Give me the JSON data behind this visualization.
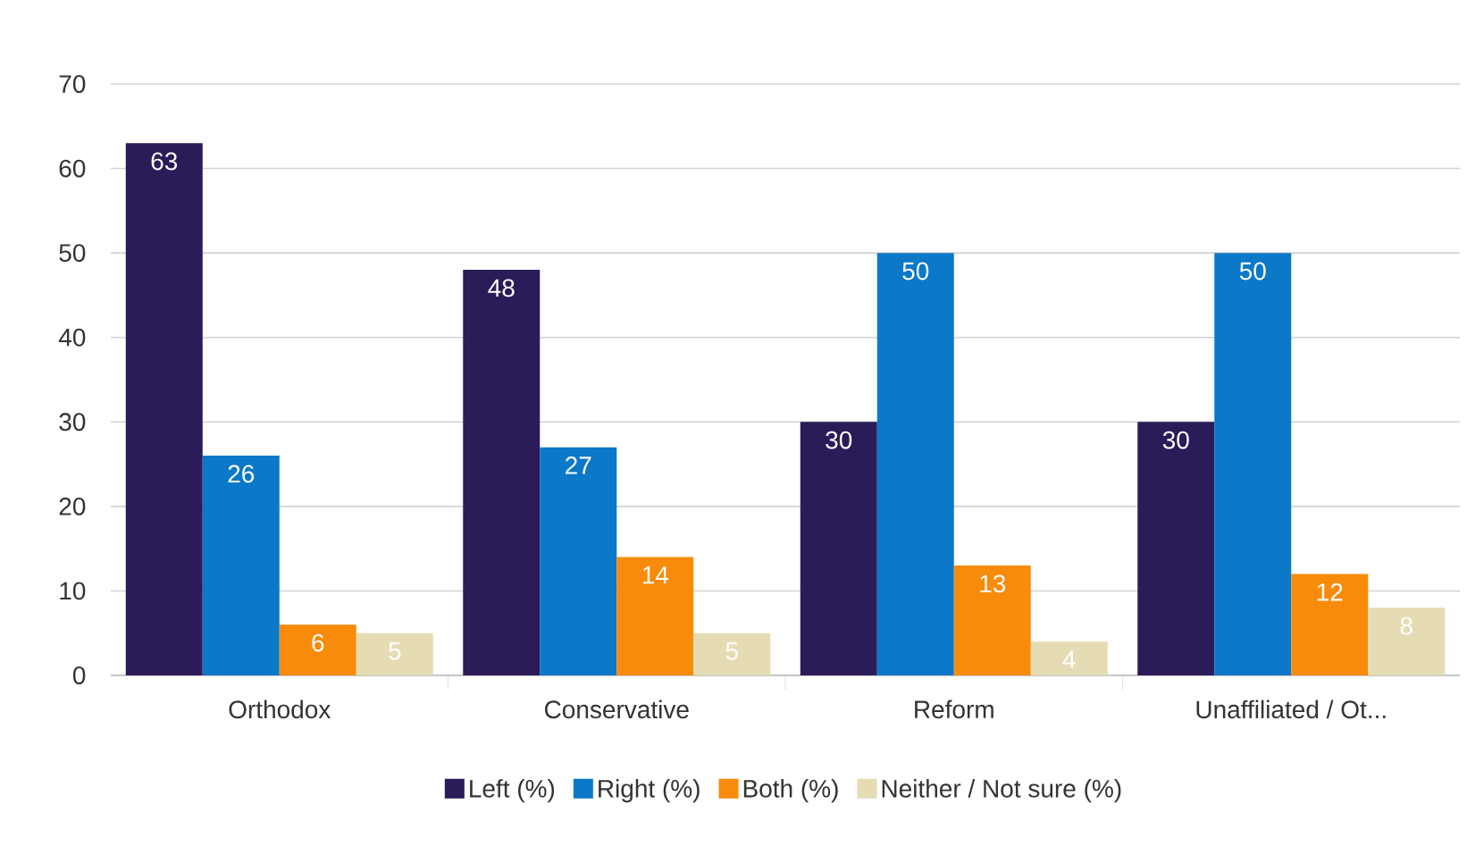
{
  "chart_data": {
    "type": "bar",
    "categories": [
      "Orthodox",
      "Conservative",
      "Reform",
      "Unaffiliated / Ot..."
    ],
    "series": [
      {
        "name": "Left (%)",
        "color": "#2b1b58",
        "values": [
          63,
          48,
          30,
          30
        ]
      },
      {
        "name": "Right (%)",
        "color": "#0b78c8",
        "values": [
          26,
          27,
          50,
          50
        ]
      },
      {
        "name": "Both (%)",
        "color": "#f98b0a",
        "values": [
          6,
          14,
          13,
          12
        ]
      },
      {
        "name": "Neither / Not sure (%)",
        "color": "#e5dcb3",
        "values": [
          5,
          5,
          4,
          8
        ]
      }
    ],
    "ylim": [
      0,
      70
    ],
    "yticks": [
      0,
      10,
      20,
      30,
      40,
      50,
      60,
      70
    ],
    "grid": "y",
    "legend": "bottom",
    "data_labels": true
  }
}
